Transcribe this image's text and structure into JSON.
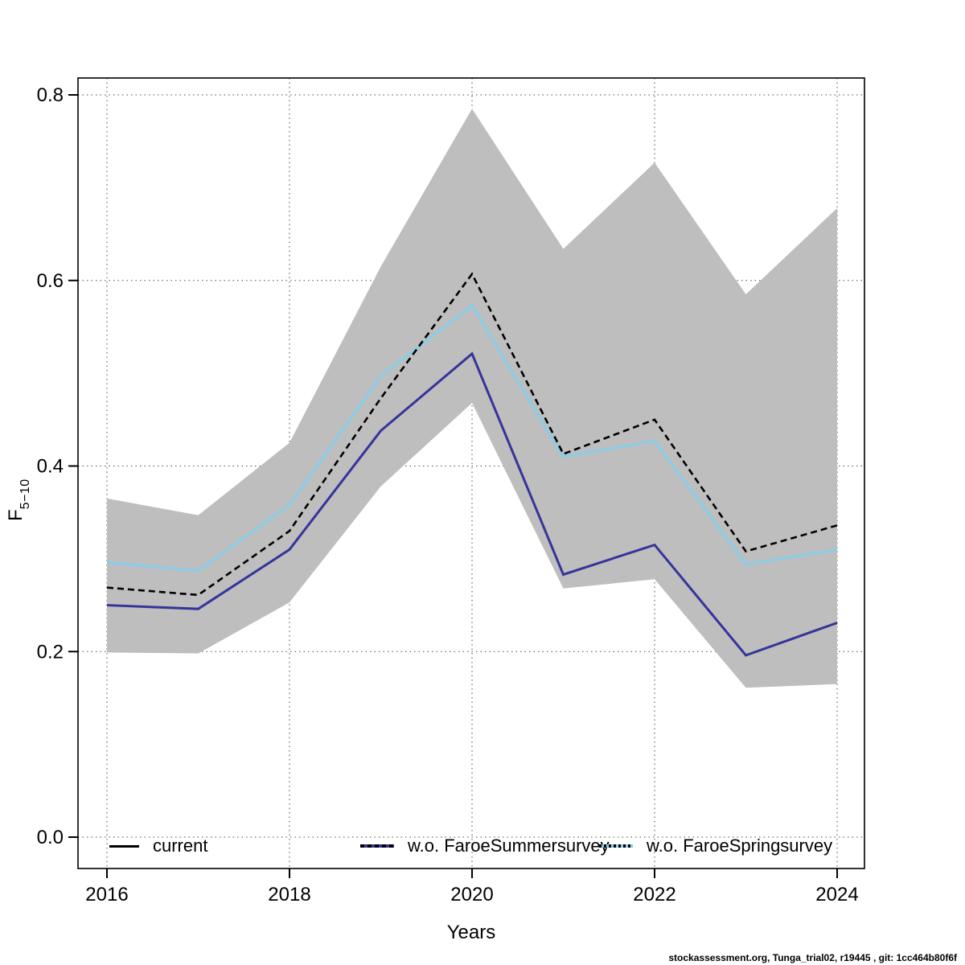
{
  "chart_data": {
    "type": "line",
    "title": "",
    "xlabel": "Years",
    "ylabel": "F",
    "ylabel_sub": "5−10",
    "grid": true,
    "xlim": [
      2015.68,
      2024.3
    ],
    "ylim": [
      -0.034,
      0.818
    ],
    "xticks": [
      2016,
      2018,
      2020,
      2022,
      2024
    ],
    "yticks": [
      "0.0",
      "0.2",
      "0.4",
      "0.6",
      "0.8"
    ],
    "x": [
      2016,
      2017,
      2018,
      2019,
      2020,
      2021,
      2022,
      2023,
      2024
    ],
    "series": [
      {
        "name": "current",
        "color": "#000000",
        "style": "dashed",
        "values": [
          0.269,
          0.261,
          0.33,
          0.473,
          0.607,
          0.413,
          0.45,
          0.308,
          0.336
        ]
      },
      {
        "name": "w.o. FaroeSummersurvey",
        "color": "#34349B",
        "style": "solid",
        "values": [
          0.25,
          0.246,
          0.31,
          0.438,
          0.521,
          0.283,
          0.315,
          0.196,
          0.231
        ]
      },
      {
        "name": "w.o. FaroeSpringsurvey",
        "color": "#87CEEB",
        "style": "solid",
        "values": [
          0.296,
          0.287,
          0.358,
          0.497,
          0.573,
          0.41,
          0.427,
          0.294,
          0.31
        ]
      }
    ],
    "band": {
      "belongs_to": "current",
      "color": "#BEBEBE",
      "upper": [
        0.365,
        0.347,
        0.425,
        0.615,
        0.785,
        0.634,
        0.727,
        0.585,
        0.678
      ],
      "lower": [
        0.199,
        0.198,
        0.253,
        0.378,
        0.468,
        0.268,
        0.278,
        0.161,
        0.165
      ]
    },
    "legend_position": "bottom-inside"
  },
  "footer": {
    "text": "stockassessment.org, Tunga_trial02, r19445 , git: 1cc464b80f6f"
  }
}
